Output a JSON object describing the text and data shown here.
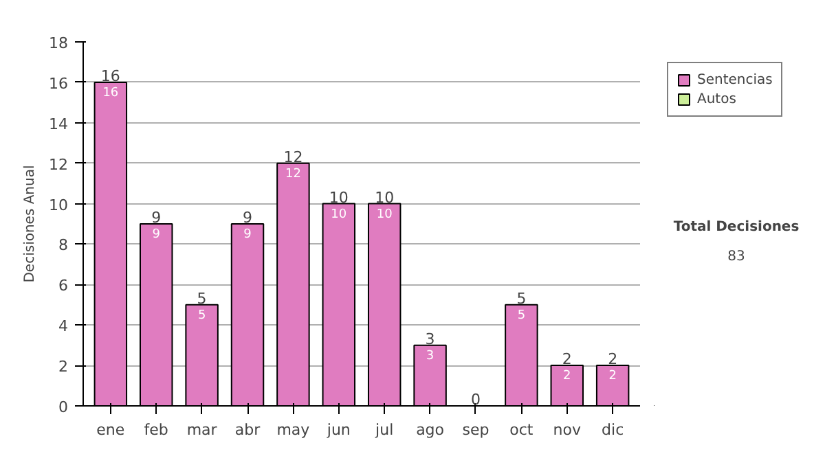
{
  "chart_data": {
    "type": "bar",
    "stacked": true,
    "ylabel": "Decisiones Anual",
    "categories": [
      "ene",
      "feb",
      "mar",
      "abr",
      "may",
      "jun",
      "jul",
      "ago",
      "sep",
      "oct",
      "nov",
      "dic"
    ],
    "series": [
      {
        "name": "Sentencias",
        "color": "#e07cc0",
        "values": [
          16,
          9,
          5,
          9,
          12,
          10,
          10,
          3,
          0,
          5,
          2,
          2
        ],
        "value_labels": [
          "16",
          "9",
          "5",
          "9",
          "12",
          "10",
          "10",
          "3",
          null,
          "5",
          "2",
          "2"
        ]
      },
      {
        "name": "Autos",
        "color": "#ccee99",
        "values": [
          0,
          0,
          0,
          0,
          0,
          0,
          0,
          0,
          0,
          0,
          0,
          0
        ]
      }
    ],
    "totals": [
      "16",
      "9",
      "5",
      "9",
      "12",
      "10",
      "10",
      "3",
      "0",
      "5",
      "2",
      "2"
    ],
    "ylim": [
      0,
      18
    ],
    "yticks": [
      0,
      2,
      4,
      6,
      8,
      10,
      12,
      14,
      16,
      18
    ],
    "grid": "y",
    "legend": "right",
    "annotations": [
      "Total Decisiones",
      "83"
    ]
  }
}
